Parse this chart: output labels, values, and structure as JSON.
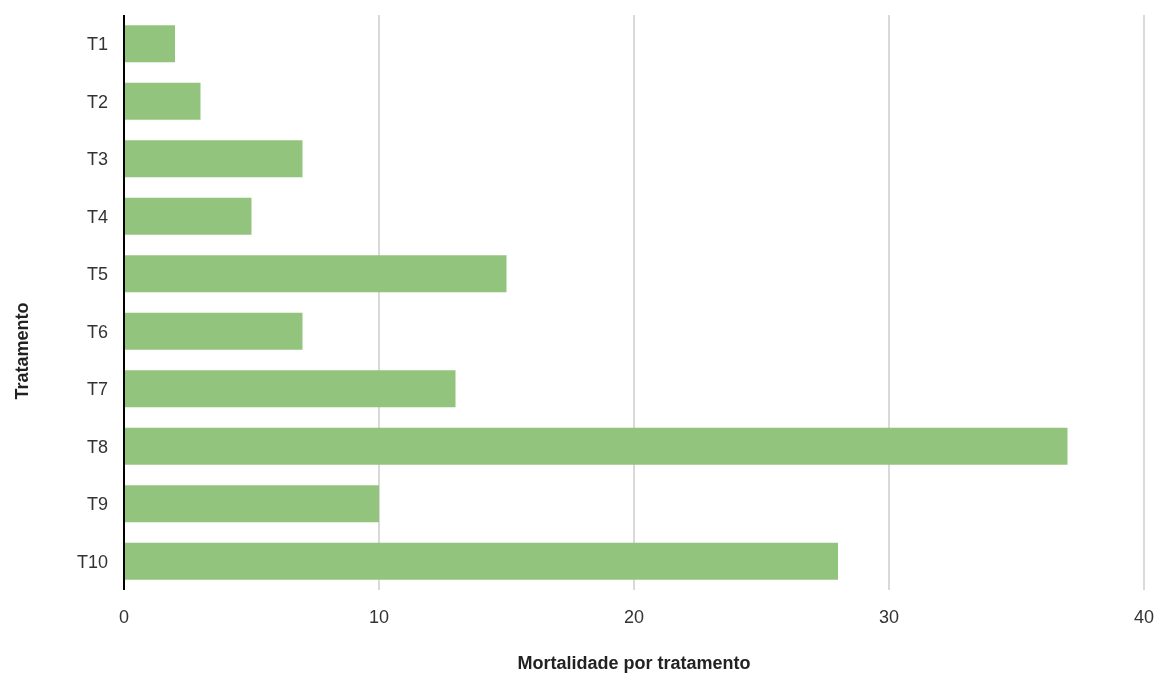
{
  "chart_data": {
    "type": "bar",
    "orientation": "horizontal",
    "xlabel": "Mortalidade por tratamento",
    "ylabel": "Tratamento",
    "categories": [
      "T1",
      "T2",
      "T3",
      "T4",
      "T5",
      "T6",
      "T7",
      "T8",
      "T9",
      "T10"
    ],
    "values": [
      2,
      3,
      7,
      5,
      15,
      7,
      13,
      37,
      10,
      28
    ],
    "color": "#93c47d",
    "xlim": [
      0,
      40
    ],
    "xticks": [
      0,
      10,
      20,
      30,
      40
    ],
    "grid": "x"
  }
}
